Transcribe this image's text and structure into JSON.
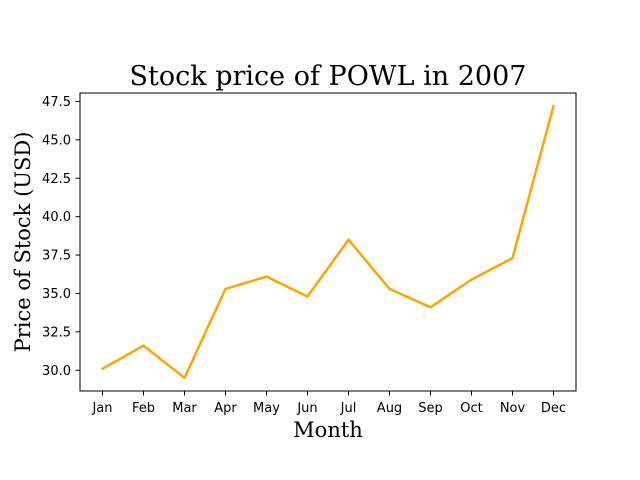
{
  "chart_data": {
    "type": "line",
    "title": "Stock price of POWL in 2007",
    "xlabel": "Month",
    "ylabel": "Price of Stock (USD)",
    "categories": [
      "Jan",
      "Feb",
      "Mar",
      "Apr",
      "May",
      "Jun",
      "Jul",
      "Aug",
      "Sep",
      "Oct",
      "Nov",
      "Dec"
    ],
    "series": [
      {
        "values": [
          30.1,
          31.6,
          29.5,
          35.3,
          36.1,
          34.8,
          38.5,
          35.3,
          34.1,
          35.9,
          37.3,
          47.2
        ],
        "color": "#ffa500"
      }
    ],
    "ylim": [
      28.65,
      48.05
    ],
    "yticks": [
      "30.0",
      "32.5",
      "35.0",
      "37.5",
      "40.0",
      "42.5",
      "45.0",
      "47.5"
    ],
    "grid": false,
    "legend": "none"
  }
}
